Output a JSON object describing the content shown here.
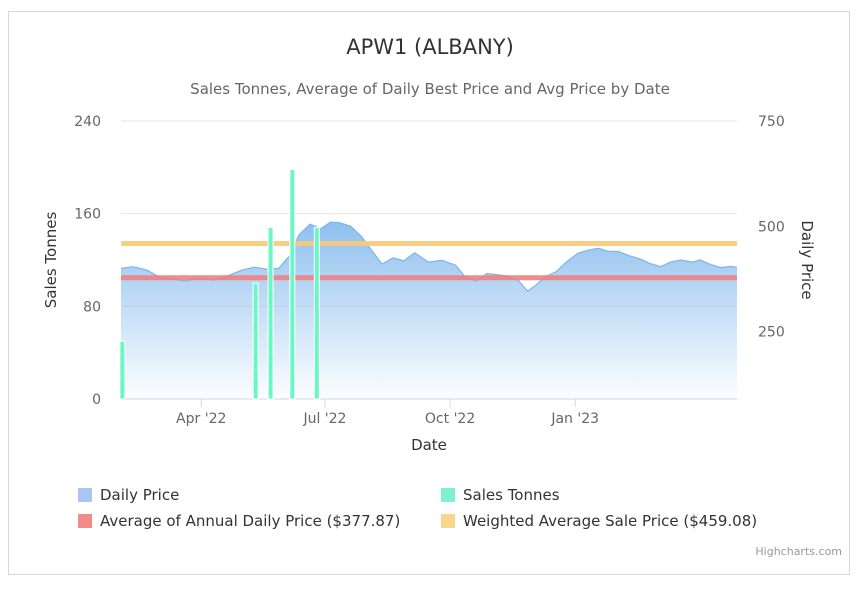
{
  "chart_data": {
    "type": "area",
    "title": "APW1 (ALBANY)",
    "subtitle": "Sales Tonnes, Average of Daily Best Price and Avg Price by Date",
    "xlabel": "Date",
    "ylabel_left": "Sales Tonnes",
    "ylabel_right": "Daily Price",
    "x_ticks": [
      "Apr '22",
      "Jul '22",
      "Oct '22",
      "Jan '23"
    ],
    "y_left_ticks": [
      "0",
      "80",
      "160",
      "240"
    ],
    "y_left_range": [
      0,
      240
    ],
    "y_right_ticks": [
      "250",
      "500",
      "750"
    ],
    "y_right_range": [
      90,
      750
    ],
    "x_range": [
      "2022-02-01",
      "2023-04-30"
    ],
    "grid": true,
    "legend_position": "bottom",
    "daily_price": {
      "name": "Daily Price",
      "color": "#7cb5ec",
      "points": [
        [
          "2022-02-01",
          400
        ],
        [
          "2022-02-10",
          404
        ],
        [
          "2022-02-20",
          396
        ],
        [
          "2022-03-01",
          380
        ],
        [
          "2022-03-10",
          376
        ],
        [
          "2022-03-20",
          370
        ],
        [
          "2022-03-31",
          378
        ],
        [
          "2022-04-10",
          372
        ],
        [
          "2022-04-20",
          382
        ],
        [
          "2022-05-01",
          396
        ],
        [
          "2022-05-10",
          403
        ],
        [
          "2022-05-20",
          398
        ],
        [
          "2022-05-28",
          400
        ],
        [
          "2022-06-05",
          430
        ],
        [
          "2022-06-12",
          480
        ],
        [
          "2022-06-20",
          505
        ],
        [
          "2022-06-28",
          494
        ],
        [
          "2022-07-05",
          510
        ],
        [
          "2022-07-12",
          508
        ],
        [
          "2022-07-20",
          500
        ],
        [
          "2022-07-28",
          475
        ],
        [
          "2022-08-05",
          440
        ],
        [
          "2022-08-12",
          410
        ],
        [
          "2022-08-20",
          425
        ],
        [
          "2022-08-28",
          418
        ],
        [
          "2022-09-05",
          437
        ],
        [
          "2022-09-15",
          415
        ],
        [
          "2022-09-25",
          419
        ],
        [
          "2022-10-05",
          408
        ],
        [
          "2022-10-12",
          380
        ],
        [
          "2022-10-20",
          370
        ],
        [
          "2022-10-28",
          388
        ],
        [
          "2022-11-05",
          385
        ],
        [
          "2022-11-12",
          382
        ],
        [
          "2022-11-20",
          372
        ],
        [
          "2022-11-27",
          346
        ],
        [
          "2022-12-03",
          360
        ],
        [
          "2022-12-10",
          380
        ],
        [
          "2022-12-18",
          392
        ],
        [
          "2022-12-25",
          414
        ],
        [
          "2023-01-03",
          436
        ],
        [
          "2023-01-10",
          443
        ],
        [
          "2023-01-18",
          448
        ],
        [
          "2023-01-25",
          441
        ],
        [
          "2023-02-02",
          440
        ],
        [
          "2023-02-10",
          430
        ],
        [
          "2023-02-18",
          422
        ],
        [
          "2023-02-25",
          412
        ],
        [
          "2023-03-05",
          404
        ],
        [
          "2023-03-12",
          415
        ],
        [
          "2023-03-20",
          420
        ],
        [
          "2023-03-28",
          415
        ],
        [
          "2023-04-03",
          420
        ],
        [
          "2023-04-10",
          410
        ],
        [
          "2023-04-18",
          402
        ],
        [
          "2023-04-25",
          405
        ],
        [
          "2023-04-30",
          403
        ]
      ]
    },
    "sales_tonnes": {
      "name": "Sales Tonnes",
      "color": "#6bf7c4",
      "bars": [
        [
          "2022-02-02",
          50
        ],
        [
          "2022-05-11",
          100
        ],
        [
          "2022-05-22",
          148
        ],
        [
          "2022-06-07",
          198
        ],
        [
          "2022-06-25",
          148
        ]
      ]
    },
    "annual_avg": {
      "name": "Average of Annual Daily Price ($377.87)",
      "value": 377.87,
      "color": "#f08080"
    },
    "weighted_avg": {
      "name": "Weighted Average Sale Price ($459.08)",
      "value": 459.08,
      "color": "#f7c97a"
    }
  },
  "legend": [
    {
      "label": "Daily Price",
      "color": "#a9c4f5"
    },
    {
      "label": "Sales Tonnes",
      "color": "#7ff0cf"
    },
    {
      "label": "Average of Annual Daily Price ($377.87)",
      "color": "#f28c87"
    },
    {
      "label": "Weighted Average Sale Price ($459.08)",
      "color": "#f9d68c"
    }
  ],
  "credits": "Highcharts.com"
}
